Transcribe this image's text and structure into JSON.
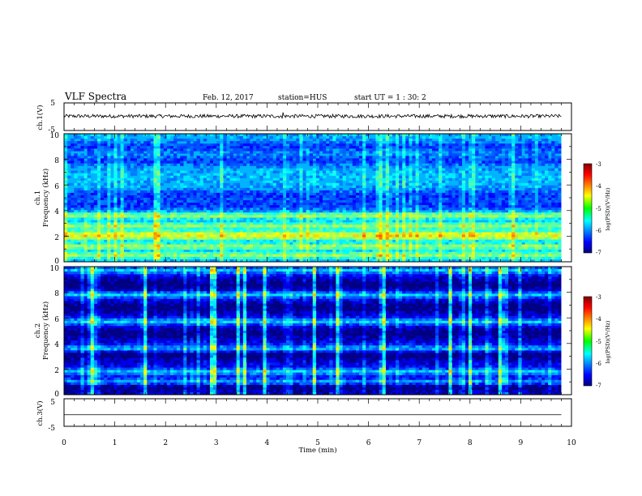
{
  "header": {
    "title": "VLF Spectra",
    "date": "Feb. 12, 2017",
    "station": "station=HUS",
    "start_ut": "start  UT =   1 : 30: 2"
  },
  "chart_data": [
    {
      "type": "line",
      "panel": "ch1-waveform",
      "ylabel": "ch.1(V)",
      "ylim": [
        -5,
        5
      ],
      "yticks": [
        "5",
        "-5"
      ],
      "xlim": [
        0,
        10
      ],
      "baseline": 0.2,
      "series_kind": "noise waveform, ends at ~9.8 min"
    },
    {
      "type": "heatmap",
      "panel": "ch1-spectrogram",
      "ylabel_line1": "ch.1",
      "ylabel_line2": "Frequency  (kHz)",
      "ylim": [
        0,
        10
      ],
      "yticks": [
        "0",
        "2",
        "4",
        "6",
        "8",
        "10"
      ],
      "xlim": [
        0,
        10
      ],
      "colorbar": {
        "label": "log(PSD)(V²/Hz)",
        "range": [
          -7,
          -3
        ],
        "ticks": [
          "-3",
          "-4",
          "-5",
          "-6",
          "-7"
        ]
      },
      "bright_bands_khz": [
        0.5,
        1.2,
        1.9,
        2.2,
        2.8,
        3.6
      ],
      "dark_bands_khz": [
        7.9,
        9.0,
        5.2,
        4.4
      ]
    },
    {
      "type": "heatmap",
      "panel": "ch2-spectrogram",
      "ylabel_line1": "ch.2",
      "ylabel_line2": "Frequency  (kHz)",
      "ylim": [
        0,
        10
      ],
      "yticks": [
        "0",
        "2",
        "4",
        "6",
        "8",
        "10"
      ],
      "xlim": [
        0,
        10
      ],
      "colorbar": {
        "label": "log(PSD)(V²/Hz)",
        "range": [
          -7,
          -3
        ],
        "ticks": [
          "-3",
          "-4",
          "-5",
          "-6",
          "-7"
        ]
      },
      "bright_bands_khz": [
        1.8,
        3.6,
        5.7,
        7.8,
        9.7,
        1.0
      ],
      "dark_bands_khz": [
        0.6,
        3.1,
        4.8,
        6.8,
        8.6
      ],
      "vertical_streaks_min": [
        0.58,
        1.57,
        2.88,
        3.0,
        3.4,
        3.55,
        3.95,
        4.9,
        5.4,
        6.3,
        7.6,
        8.0,
        8.6
      ]
    },
    {
      "type": "line",
      "panel": "ch3-waveform",
      "ylabel": "ch.3(V)",
      "ylim": [
        -5,
        5
      ],
      "yticks": [
        "5",
        "-5"
      ],
      "xlim": [
        0,
        10
      ],
      "constant_value": -0.8
    }
  ],
  "x_axis": {
    "label": "Time  (min)",
    "ticks": [
      "0",
      "1",
      "2",
      "3",
      "4",
      "5",
      "6",
      "7",
      "8",
      "9",
      "10"
    ]
  }
}
